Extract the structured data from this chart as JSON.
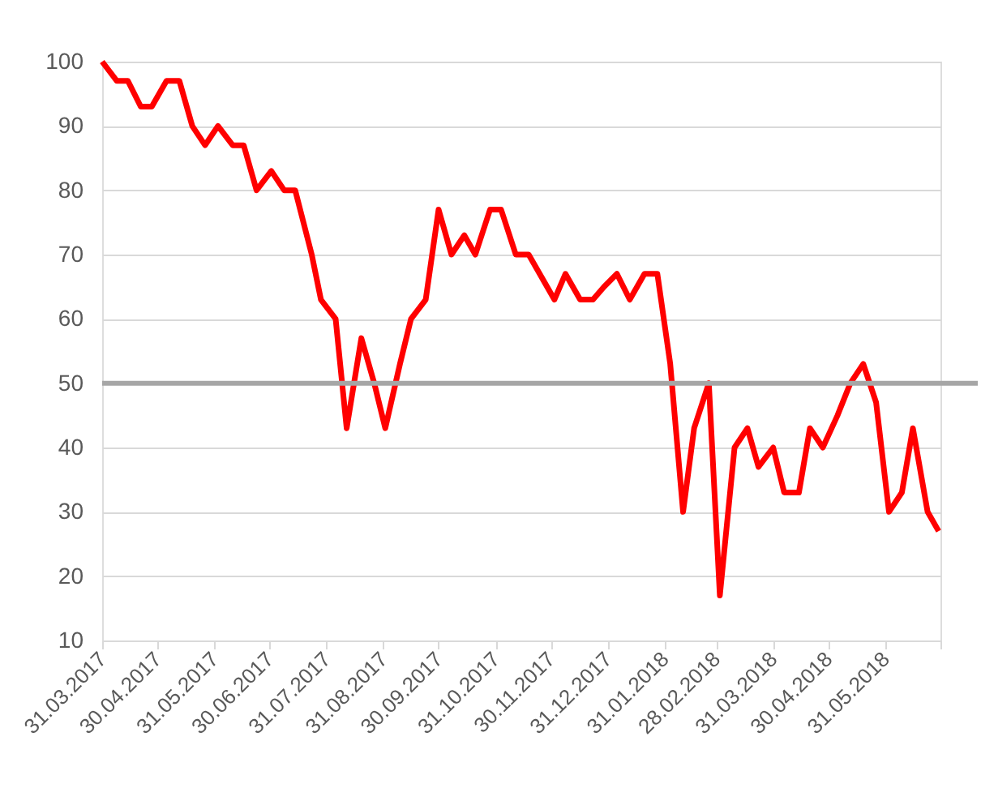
{
  "chart_data": {
    "type": "line",
    "x": [
      "2017-03-31",
      "2017-04-08",
      "2017-04-14",
      "2017-04-21",
      "2017-04-27",
      "2017-05-05",
      "2017-05-12",
      "2017-05-19",
      "2017-05-26",
      "2017-06-02",
      "2017-06-10",
      "2017-06-16",
      "2017-06-23",
      "2017-07-01",
      "2017-07-08",
      "2017-07-14",
      "2017-07-23",
      "2017-07-28",
      "2017-08-05",
      "2017-08-11",
      "2017-08-19",
      "2017-08-26",
      "2017-09-01",
      "2017-09-09",
      "2017-09-15",
      "2017-09-23",
      "2017-09-30",
      "2017-10-07",
      "2017-10-14",
      "2017-10-20",
      "2017-10-28",
      "2017-11-03",
      "2017-11-11",
      "2017-11-18",
      "2017-11-24",
      "2017-12-02",
      "2017-12-08",
      "2017-12-16",
      "2017-12-23",
      "2017-12-29",
      "2018-01-05",
      "2018-01-12",
      "2018-01-20",
      "2018-01-27",
      "2018-02-03",
      "2018-02-10",
      "2018-02-16",
      "2018-02-24",
      "2018-03-02",
      "2018-03-10",
      "2018-03-17",
      "2018-03-23",
      "2018-03-31",
      "2018-04-06",
      "2018-04-14",
      "2018-04-20",
      "2018-04-27",
      "2018-05-05",
      "2018-05-12",
      "2018-05-19",
      "2018-05-26",
      "2018-06-02",
      "2018-06-09",
      "2018-06-15",
      "2018-06-23",
      "2018-06-29"
    ],
    "series": [
      {
        "color": "#ff0000",
        "values": [
          100,
          97,
          97,
          93,
          93,
          97,
          97,
          90,
          87,
          90,
          87,
          87,
          80,
          83,
          80,
          80,
          70,
          63,
          60,
          43,
          57,
          50,
          43,
          53,
          60,
          63,
          77,
          70,
          73,
          70,
          77,
          77,
          70,
          70,
          67,
          63,
          67,
          63,
          63,
          65,
          67,
          63,
          67,
          67,
          53,
          30,
          43,
          50,
          17,
          40,
          43,
          37,
          40,
          33,
          33,
          43,
          40,
          45,
          50,
          53,
          47,
          30,
          33,
          43,
          30,
          27
        ]
      }
    ],
    "xlim": [
      "2017-03-31",
      "2018-06-30"
    ],
    "xticks": [
      {
        "value": "2017-03-31",
        "label": "31.03.2017"
      },
      {
        "value": "2017-04-30",
        "label": "30.04.2017"
      },
      {
        "value": "2017-05-31",
        "label": "31.05.2017"
      },
      {
        "value": "2017-06-30",
        "label": "30.06.2017"
      },
      {
        "value": "2017-07-31",
        "label": "31.07.2017"
      },
      {
        "value": "2017-08-31",
        "label": "31.08.2017"
      },
      {
        "value": "2017-09-30",
        "label": "30.09.2017"
      },
      {
        "value": "2017-10-31",
        "label": "31.10.2017"
      },
      {
        "value": "2017-11-30",
        "label": "30.11.2017"
      },
      {
        "value": "2017-12-31",
        "label": "31.12.2017"
      },
      {
        "value": "2018-01-31",
        "label": "31.01.2018"
      },
      {
        "value": "2018-02-28",
        "label": "28.02.2018"
      },
      {
        "value": "2018-03-31",
        "label": "31.03.2018"
      },
      {
        "value": "2018-04-30",
        "label": "30.04.2018"
      },
      {
        "value": "2018-05-31",
        "label": "31.05.2018"
      },
      {
        "value": "2018-06-30",
        "label": null
      }
    ],
    "ylim": [
      10,
      100
    ],
    "yticks": [
      10,
      20,
      30,
      40,
      50,
      60,
      70,
      80,
      90,
      100
    ],
    "grid": "y",
    "marker": "none",
    "line_style": "solid",
    "ref_lines": [
      {
        "axis": "y",
        "value": 50,
        "color": "#a6a6a6"
      }
    ]
  }
}
